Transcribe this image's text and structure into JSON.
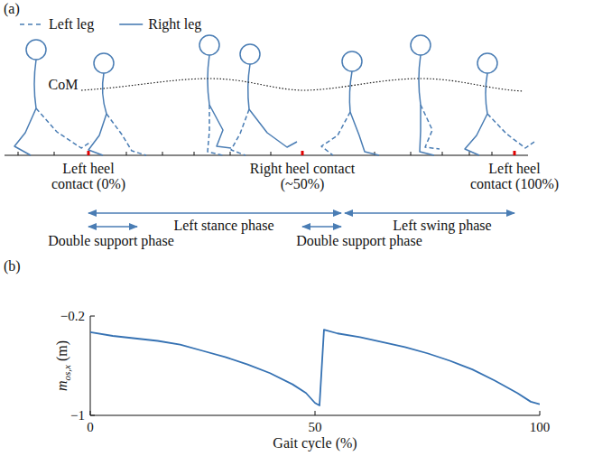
{
  "panel_a": {
    "label": "(a)",
    "legend": [
      {
        "name": "Left leg",
        "line_style": "dashed"
      },
      {
        "name": "Right leg",
        "line_style": "solid"
      }
    ],
    "com_label": "CoM",
    "events": [
      {
        "lines": [
          "Left heel",
          "contact (0%)"
        ]
      },
      {
        "lines": [
          "Right heel contact",
          "(~50%)"
        ]
      },
      {
        "lines": [
          "Left heel",
          "contact (100%)"
        ]
      }
    ],
    "phases": [
      "Left stance phase",
      "Left swing phase",
      "Double support phase",
      "Double support phase"
    ],
    "color": "#4a7db4"
  },
  "chart_data": {
    "type": "line",
    "panel_label": "(b)",
    "x_label": "Gait cycle (%)",
    "y_label": {
      "symbol": "m",
      "subscript": "os,x",
      "unit": "(m)"
    },
    "x": [
      0,
      5,
      10,
      15,
      20,
      25,
      30,
      35,
      40,
      45,
      48,
      50,
      51,
      52,
      55,
      60,
      65,
      70,
      75,
      80,
      85,
      90,
      95,
      98,
      100
    ],
    "series": [
      {
        "color": "#3672b3",
        "values": [
          -0.33,
          -0.36,
          -0.38,
          -0.4,
          -0.43,
          -0.48,
          -0.53,
          -0.59,
          -0.66,
          -0.75,
          -0.82,
          -0.9,
          -0.92,
          -0.31,
          -0.34,
          -0.37,
          -0.41,
          -0.45,
          -0.5,
          -0.56,
          -0.63,
          -0.72,
          -0.82,
          -0.89,
          -0.91
        ]
      }
    ],
    "xlim": [
      0,
      100
    ],
    "xticks": [
      0,
      50,
      100
    ],
    "ylim": [
      -1,
      -0.2
    ],
    "yticks": [
      {
        "value": -1,
        "label": "−1"
      },
      {
        "value": -0.2,
        "label": "−0.2"
      }
    ],
    "grid": false
  }
}
